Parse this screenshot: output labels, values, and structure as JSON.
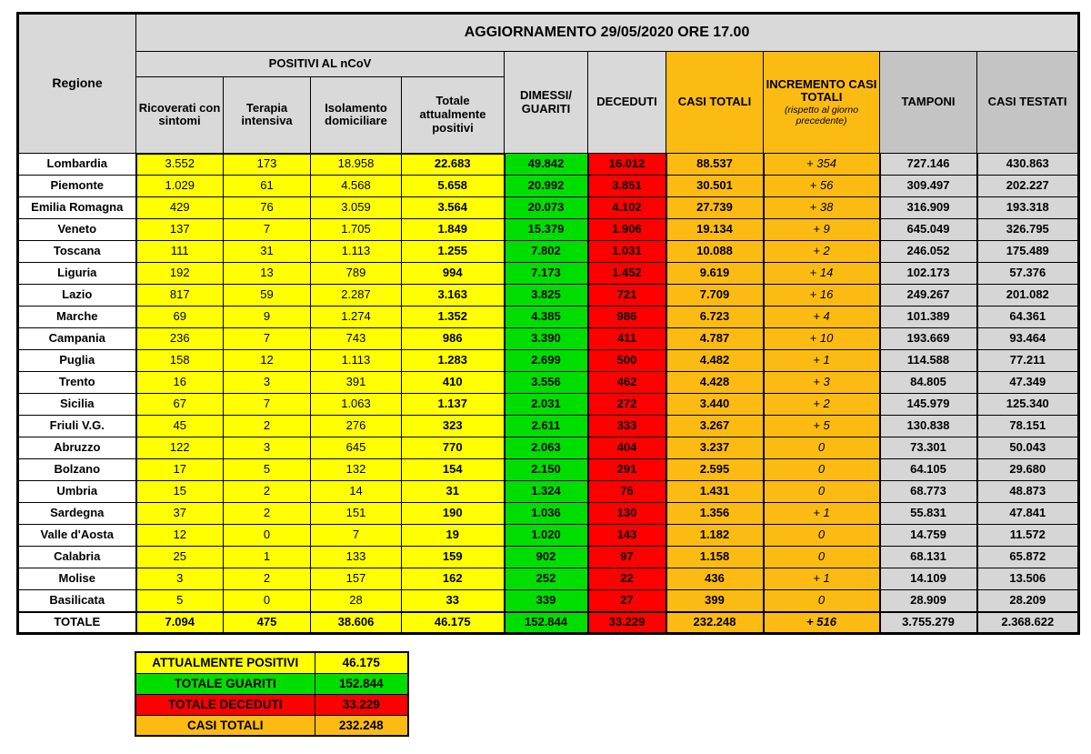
{
  "title": "AGGIORNAMENTO 29/05/2020 ORE 17.00",
  "table": {
    "header": {
      "regione": "Regione",
      "positivi_group": "POSITIVI AL nCoV",
      "ricoverati": "Ricoverati con sintomi",
      "terapia": "Terapia intensiva",
      "isolamento": "Isolamento domiciliare",
      "totale_positivi": "Totale attualmente positivi",
      "dimessi": "DIMESSI/ GUARITI",
      "deceduti": "DECEDUTI",
      "casi_totali": "CASI TOTALI",
      "incremento": "INCREMENTO CASI TOTALI",
      "incremento_note": "(rispetto al giorno precedente)",
      "tamponi": "TAMPONI",
      "casi_testati": "CASI TESTATI"
    },
    "column_keys": [
      "ricoverati-con-sintomi",
      "terapia-intensiva",
      "isolamento-domiciliare",
      "totale-attualmente-positivi",
      "dimessi-guariti",
      "deceduti",
      "casi-totali",
      "incremento-casi-totali",
      "tamponi",
      "casi-testati"
    ],
    "rows": [
      {
        "regione": "Lombardia",
        "values": [
          "3.552",
          "173",
          "18.958",
          "22.683",
          "49.842",
          "16.012",
          "88.537",
          "+ 354",
          "727.146",
          "430.863"
        ]
      },
      {
        "regione": "Piemonte",
        "values": [
          "1.029",
          "61",
          "4.568",
          "5.658",
          "20.992",
          "3.851",
          "30.501",
          "+ 56",
          "309.497",
          "202.227"
        ]
      },
      {
        "regione": "Emilia Romagna",
        "values": [
          "429",
          "76",
          "3.059",
          "3.564",
          "20.073",
          "4.102",
          "27.739",
          "+ 38",
          "316.909",
          "193.318"
        ]
      },
      {
        "regione": "Veneto",
        "values": [
          "137",
          "7",
          "1.705",
          "1.849",
          "15.379",
          "1.906",
          "19.134",
          "+ 9",
          "645.049",
          "326.795"
        ]
      },
      {
        "regione": "Toscana",
        "values": [
          "111",
          "31",
          "1.113",
          "1.255",
          "7.802",
          "1.031",
          "10.088",
          "+ 2",
          "246.052",
          "175.489"
        ]
      },
      {
        "regione": "Liguria",
        "values": [
          "192",
          "13",
          "789",
          "994",
          "7.173",
          "1.452",
          "9.619",
          "+ 14",
          "102.173",
          "57.376"
        ]
      },
      {
        "regione": "Lazio",
        "values": [
          "817",
          "59",
          "2.287",
          "3.163",
          "3.825",
          "721",
          "7.709",
          "+ 16",
          "249.267",
          "201.082"
        ]
      },
      {
        "regione": "Marche",
        "values": [
          "69",
          "9",
          "1.274",
          "1.352",
          "4.385",
          "986",
          "6.723",
          "+ 4",
          "101.389",
          "64.361"
        ]
      },
      {
        "regione": "Campania",
        "values": [
          "236",
          "7",
          "743",
          "986",
          "3.390",
          "411",
          "4.787",
          "+ 10",
          "193.669",
          "93.464"
        ]
      },
      {
        "regione": "Puglia",
        "values": [
          "158",
          "12",
          "1.113",
          "1.283",
          "2.699",
          "500",
          "4.482",
          "+ 1",
          "114.588",
          "77.211"
        ]
      },
      {
        "regione": "Trento",
        "values": [
          "16",
          "3",
          "391",
          "410",
          "3.556",
          "462",
          "4.428",
          "+ 3",
          "84.805",
          "47.349"
        ]
      },
      {
        "regione": "Sicilia",
        "values": [
          "67",
          "7",
          "1.063",
          "1.137",
          "2.031",
          "272",
          "3.440",
          "+ 2",
          "145.979",
          "125.340"
        ]
      },
      {
        "regione": "Friuli V.G.",
        "values": [
          "45",
          "2",
          "276",
          "323",
          "2.611",
          "333",
          "3.267",
          "+ 5",
          "130.838",
          "78.151"
        ]
      },
      {
        "regione": "Abruzzo",
        "values": [
          "122",
          "3",
          "645",
          "770",
          "2.063",
          "404",
          "3.237",
          "0",
          "73.301",
          "50.043"
        ]
      },
      {
        "regione": "Bolzano",
        "values": [
          "17",
          "5",
          "132",
          "154",
          "2.150",
          "291",
          "2.595",
          "0",
          "64.105",
          "29.680"
        ]
      },
      {
        "regione": "Umbria",
        "values": [
          "15",
          "2",
          "14",
          "31",
          "1.324",
          "76",
          "1.431",
          "0",
          "68.773",
          "48.873"
        ]
      },
      {
        "regione": "Sardegna",
        "values": [
          "37",
          "2",
          "151",
          "190",
          "1.036",
          "130",
          "1.356",
          "+ 1",
          "55.831",
          "47.841"
        ]
      },
      {
        "regione": "Valle d'Aosta",
        "values": [
          "12",
          "0",
          "7",
          "19",
          "1.020",
          "143",
          "1.182",
          "0",
          "14.759",
          "11.572"
        ]
      },
      {
        "regione": "Calabria",
        "values": [
          "25",
          "1",
          "133",
          "159",
          "902",
          "97",
          "1.158",
          "0",
          "68.131",
          "65.872"
        ]
      },
      {
        "regione": "Molise",
        "values": [
          "3",
          "2",
          "157",
          "162",
          "252",
          "22",
          "436",
          "+ 1",
          "14.109",
          "13.506"
        ]
      },
      {
        "regione": "Basilicata",
        "values": [
          "5",
          "0",
          "28",
          "33",
          "339",
          "27",
          "399",
          "0",
          "28.909",
          "28.209"
        ]
      }
    ],
    "total_row": {
      "regione": "TOTALE",
      "values": [
        "7.094",
        "475",
        "38.606",
        "46.175",
        "152.844",
        "33.229",
        "232.248",
        "+ 516",
        "3.755.279",
        "2.368.622"
      ]
    }
  },
  "summary": {
    "rows": [
      {
        "label": "ATTUALMENTE POSITIVI",
        "value": "46.175",
        "color": "yellow"
      },
      {
        "label": "TOTALE GUARITI",
        "value": "152.844",
        "color": "green"
      },
      {
        "label": "TOTALE DECEDUTI",
        "value": "33.229",
        "color": "red"
      },
      {
        "label": "CASI TOTALI",
        "value": "232.248",
        "color": "orange"
      }
    ]
  },
  "colors": {
    "positivi_yellow": "#ffff00",
    "guariti_green": "#00dd00",
    "deceduti_red": "#fe0000",
    "casi_totali_orange": "#fcbb13",
    "header_gray": "#d9d9d9",
    "tamponi_header_gray": "#c4c4c4",
    "tamponi_cell_gray": "#d6d6d6"
  }
}
